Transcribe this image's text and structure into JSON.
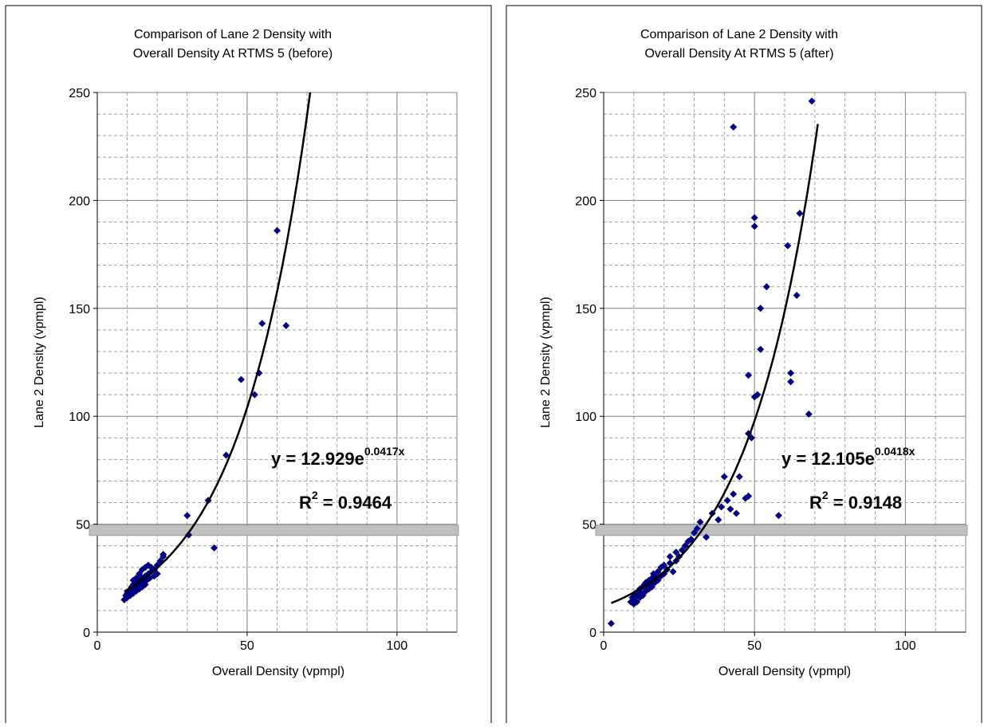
{
  "chart_data": [
    {
      "type": "scatter",
      "title": [
        "Comparison of Lane 2 Density with",
        "Overall Density At RTMS 5 (before)"
      ],
      "xlabel": "Overall Density (vpmpl)",
      "ylabel": "Lane 2 Density (vpmpl)",
      "xlim": [
        0,
        120
      ],
      "ylim": [
        0,
        250
      ],
      "x_ticks": [
        "0",
        "50",
        "100"
      ],
      "y_ticks": [
        "0",
        "50",
        "100",
        "150",
        "200",
        "250"
      ],
      "grid": true,
      "marker_color": "#000080",
      "trendline": {
        "type": "exponential",
        "a": 12.929,
        "b": 0.0417,
        "x_start": 9,
        "x_end": 75
      },
      "equation": {
        "prefix": "y = 12.929e",
        "exponent": "0.0417x",
        "r2_prefix": "R",
        "r2_sup": "2",
        "r2_value": " = 0.9464"
      },
      "threshold_band": {
        "y": 47
      },
      "points": [
        [
          9,
          15
        ],
        [
          9.5,
          17
        ],
        [
          10,
          16
        ],
        [
          10,
          18
        ],
        [
          10.5,
          19
        ],
        [
          11,
          17
        ],
        [
          11,
          20
        ],
        [
          11.5,
          21
        ],
        [
          12,
          18
        ],
        [
          12,
          22
        ],
        [
          12,
          24
        ],
        [
          12.5,
          20
        ],
        [
          13,
          19
        ],
        [
          13,
          23
        ],
        [
          13,
          25
        ],
        [
          13.5,
          21
        ],
        [
          14,
          20
        ],
        [
          14,
          24
        ],
        [
          14,
          27
        ],
        [
          14.5,
          22
        ],
        [
          15,
          21
        ],
        [
          15,
          25
        ],
        [
          15,
          29
        ],
        [
          15.5,
          23
        ],
        [
          16,
          22
        ],
        [
          16,
          26
        ],
        [
          16,
          30
        ],
        [
          16.5,
          24
        ],
        [
          17,
          27
        ],
        [
          17,
          31
        ],
        [
          17.5,
          25
        ],
        [
          18,
          28
        ],
        [
          18,
          30
        ],
        [
          19,
          26
        ],
        [
          19,
          29
        ],
        [
          20,
          27
        ],
        [
          20,
          31
        ],
        [
          21,
          33
        ],
        [
          22,
          35
        ],
        [
          22,
          36
        ],
        [
          30,
          54
        ],
        [
          30.5,
          45
        ],
        [
          37,
          61
        ],
        [
          39,
          39
        ],
        [
          43,
          82
        ],
        [
          48,
          117
        ],
        [
          52.5,
          110
        ],
        [
          54,
          120
        ],
        [
          55,
          143
        ],
        [
          60,
          186
        ],
        [
          63,
          142
        ]
      ]
    },
    {
      "type": "scatter",
      "title": [
        "Comparison of Lane 2 Density with",
        "Overall Density At RTMS 5 (after)"
      ],
      "xlabel": "Overall Density (vpmpl)",
      "ylabel": "Lane 2 Density (vpmpl)",
      "xlim": [
        0,
        120
      ],
      "ylim": [
        0,
        250
      ],
      "x_ticks": [
        "0",
        "50",
        "100"
      ],
      "y_ticks": [
        "0",
        "50",
        "100",
        "150",
        "200",
        "250"
      ],
      "grid": true,
      "marker_color": "#000080",
      "trendline": {
        "type": "exponential",
        "a": 12.105,
        "b": 0.0418,
        "x_start": 2.5,
        "x_end": 71
      },
      "equation": {
        "prefix": "y = 12.105e",
        "exponent": "0.0418x",
        "r2_prefix": "R",
        "r2_sup": "2",
        "r2_value": " = 0.9148"
      },
      "threshold_band": {
        "y": 47
      },
      "points": [
        [
          2.5,
          4
        ],
        [
          9,
          14
        ],
        [
          9.5,
          16
        ],
        [
          10,
          13
        ],
        [
          10,
          15
        ],
        [
          10.5,
          18
        ],
        [
          11,
          14
        ],
        [
          11,
          17
        ],
        [
          11.5,
          19
        ],
        [
          12,
          16
        ],
        [
          12,
          20
        ],
        [
          12.5,
          18
        ],
        [
          13,
          17
        ],
        [
          13,
          21
        ],
        [
          13.5,
          22
        ],
        [
          14,
          19
        ],
        [
          14,
          23
        ],
        [
          14.5,
          21
        ],
        [
          15,
          20
        ],
        [
          15,
          24
        ],
        [
          15.5,
          22
        ],
        [
          16,
          21
        ],
        [
          16,
          25
        ],
        [
          16.5,
          27
        ],
        [
          17,
          23
        ],
        [
          17,
          26
        ],
        [
          18,
          24
        ],
        [
          18,
          28
        ],
        [
          19,
          26
        ],
        [
          19,
          30
        ],
        [
          20,
          27
        ],
        [
          20,
          31
        ],
        [
          21,
          29
        ],
        [
          22,
          32
        ],
        [
          22,
          35
        ],
        [
          23,
          28
        ],
        [
          24,
          33
        ],
        [
          24,
          37
        ],
        [
          25,
          35
        ],
        [
          26,
          38
        ],
        [
          27,
          40
        ],
        [
          28,
          42
        ],
        [
          29,
          43
        ],
        [
          30,
          46
        ],
        [
          31,
          48
        ],
        [
          32,
          51
        ],
        [
          34,
          44
        ],
        [
          36,
          55
        ],
        [
          38,
          52
        ],
        [
          39,
          58
        ],
        [
          40,
          72
        ],
        [
          41,
          61
        ],
        [
          42,
          57
        ],
        [
          43,
          64
        ],
        [
          43,
          234
        ],
        [
          44,
          55
        ],
        [
          45,
          72
        ],
        [
          47,
          62
        ],
        [
          48,
          63
        ],
        [
          48,
          92
        ],
        [
          48,
          119
        ],
        [
          49,
          90
        ],
        [
          50,
          109
        ],
        [
          50,
          188
        ],
        [
          50,
          192
        ],
        [
          51,
          110
        ],
        [
          52,
          150
        ],
        [
          52,
          131
        ],
        [
          54,
          160
        ],
        [
          58,
          54
        ],
        [
          61,
          179
        ],
        [
          62,
          116
        ],
        [
          62,
          120
        ],
        [
          64,
          156
        ],
        [
          65,
          194
        ],
        [
          68,
          101
        ],
        [
          69,
          246
        ]
      ]
    }
  ]
}
